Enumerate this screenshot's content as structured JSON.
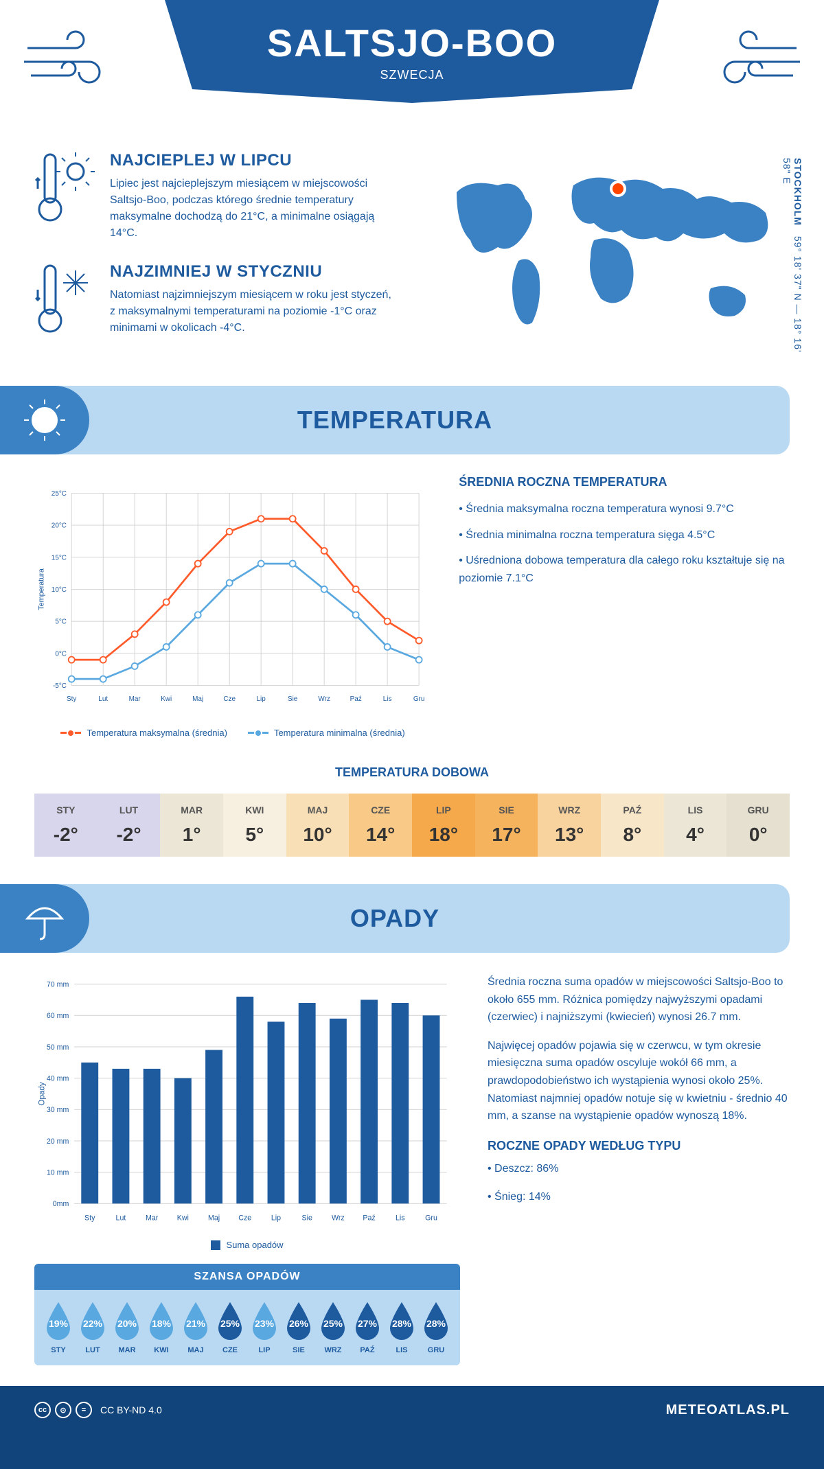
{
  "header": {
    "title": "SALTSJO-BOO",
    "subtitle": "SZWECJA",
    "banner_color": "#1d5a9e",
    "deco_color": "#1d5a9e"
  },
  "facts": {
    "warm": {
      "title": "NAJCIEPLEJ W LIPCU",
      "text": "Lipiec jest najcieplejszym miesiącem w miejscowości Saltsjo-Boo, podczas którego średnie temperatury maksymalne dochodzą do 21°C, a minimalne osiągają 14°C."
    },
    "cold": {
      "title": "NAJZIMNIEJ W STYCZNIU",
      "text": "Natomiast najzimniejszym miesiącem w roku jest styczeń, z maksymalnymi temperaturami na poziomie -1°C oraz minimami w okolicach -4°C."
    }
  },
  "map": {
    "city_label": "STOCKHOLM",
    "coords": "59° 18' 37\" N — 18° 16' 58\" E",
    "marker_color": "#ff4500",
    "land_color": "#3b82c4"
  },
  "months": [
    "Sty",
    "Lut",
    "Mar",
    "Kwi",
    "Maj",
    "Cze",
    "Lip",
    "Sie",
    "Wrz",
    "Paź",
    "Lis",
    "Gru"
  ],
  "months_upper": [
    "STY",
    "LUT",
    "MAR",
    "KWI",
    "MAJ",
    "CZE",
    "LIP",
    "SIE",
    "WRZ",
    "PAŹ",
    "LIS",
    "GRU"
  ],
  "temperature_section": {
    "title": "TEMPERATURA",
    "chart": {
      "type": "line",
      "ylabel": "Temperatura",
      "ylim": [
        -5,
        25
      ],
      "ytick_step": 5,
      "ytick_labels": [
        "-5°C",
        "0°C",
        "5°C",
        "10°C",
        "15°C",
        "20°C",
        "25°C"
      ],
      "grid_color": "#d0d0d0",
      "background": "#ffffff",
      "series": [
        {
          "name": "Temperatura maksymalna (średnia)",
          "color": "#ff5a2a",
          "values": [
            -1,
            -1,
            3,
            8,
            14,
            19,
            21,
            21,
            16,
            10,
            5,
            2
          ]
        },
        {
          "name": "Temperatura minimalna (średnia)",
          "color": "#5aa8e0",
          "values": [
            -4,
            -4,
            -2,
            1,
            6,
            11,
            14,
            14,
            10,
            6,
            1,
            -1
          ]
        }
      ],
      "line_width": 3,
      "marker_size": 5
    },
    "info": {
      "title": "ŚREDNIA ROCZNA TEMPERATURA",
      "bullets": [
        "• Średnia maksymalna roczna temperatura wynosi 9.7°C",
        "• Średnia minimalna roczna temperatura sięga 4.5°C",
        "• Uśredniona dobowa temperatura dla całego roku kształtuje się na poziomie 7.1°C"
      ]
    },
    "daily": {
      "title": "TEMPERATURA DOBOWA",
      "values": [
        "-2°",
        "-2°",
        "1°",
        "5°",
        "10°",
        "14°",
        "18°",
        "17°",
        "13°",
        "8°",
        "4°",
        "0°"
      ],
      "bg_colors": [
        "#d8d6ec",
        "#d8d6ec",
        "#ece6d6",
        "#f7efe0",
        "#f9dfb5",
        "#f9c988",
        "#f5a94a",
        "#f5b35e",
        "#f9d39e",
        "#f7e6c8",
        "#ece6d6",
        "#e6e0d0"
      ]
    }
  },
  "precip_section": {
    "title": "OPADY",
    "chart": {
      "type": "bar",
      "ylabel": "Opady",
      "ylim": [
        0,
        70
      ],
      "ytick_step": 10,
      "ytick_labels": [
        "0mm",
        "10 mm",
        "20 mm",
        "30 mm",
        "40 mm",
        "50 mm",
        "60 mm",
        "70 mm"
      ],
      "grid_color": "#d0d0d0",
      "bar_color": "#1d5a9e",
      "bar_width": 0.55,
      "values": [
        45,
        43,
        43,
        40,
        49,
        66,
        58,
        64,
        59,
        65,
        64,
        60
      ],
      "legend_label": "Suma opadów"
    },
    "text1": "Średnia roczna suma opadów w miejscowości Saltsjo-Boo to około 655 mm. Różnica pomiędzy najwyższymi opadami (czerwiec) i najniższymi (kwiecień) wynosi 26.7 mm.",
    "text2": "Najwięcej opadów pojawia się w czerwcu, w tym okresie miesięczna suma opadów oscyluje wokół 66 mm, a prawdopodobieństwo ich wystąpienia wynosi około 25%. Natomiast najmniej opadów notuje się w kwietniu - średnio 40 mm, a szanse na wystąpienie opadów wynoszą 18%.",
    "drops": {
      "title": "SZANSA OPADÓW",
      "values": [
        19,
        22,
        20,
        18,
        21,
        25,
        23,
        26,
        25,
        27,
        28,
        28
      ],
      "light_color": "#5aa8e0",
      "dark_color": "#1d5a9e",
      "threshold": 25
    },
    "by_type": {
      "title": "ROCZNE OPADY WEDŁUG TYPU",
      "items": [
        "• Deszcz: 86%",
        "• Śnieg: 14%"
      ]
    }
  },
  "footer": {
    "license": "CC BY-ND 4.0",
    "brand": "METEOATLAS.PL"
  }
}
